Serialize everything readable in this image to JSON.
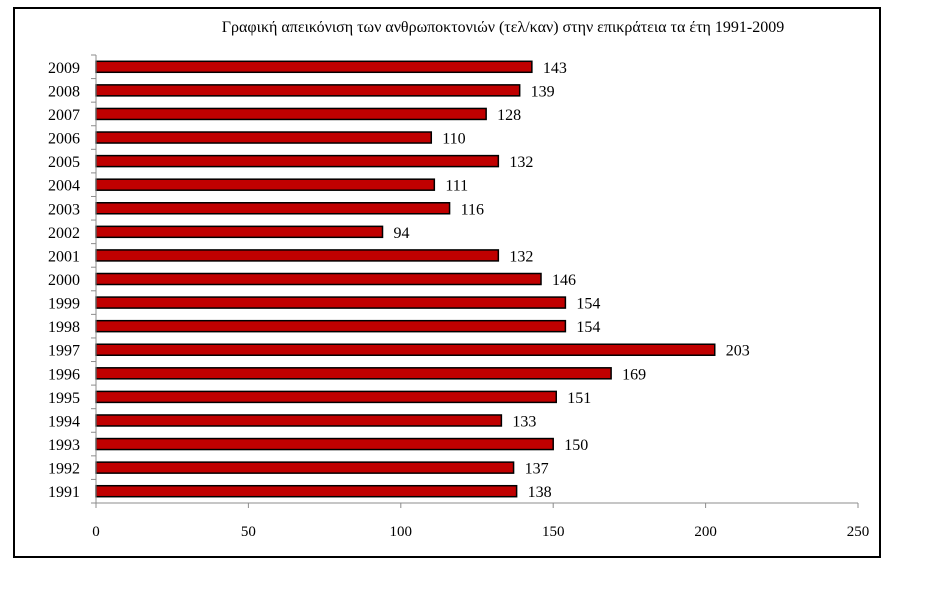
{
  "chart_data": {
    "type": "bar",
    "orientation": "horizontal",
    "title": "Γραφική απεικόνιση των ανθρωποκτονιών (τελ/καν) στην επικράτεια τα έτη 1991-2009",
    "categories": [
      "1991",
      "1992",
      "1993",
      "1994",
      "1995",
      "1996",
      "1997",
      "1998",
      "1999",
      "2000",
      "2001",
      "2002",
      "2003",
      "2004",
      "2005",
      "2006",
      "2007",
      "2008",
      "2009"
    ],
    "values": [
      138,
      137,
      150,
      133,
      151,
      169,
      203,
      154,
      154,
      146,
      132,
      94,
      116,
      111,
      132,
      110,
      128,
      139,
      143
    ],
    "xlim": [
      0,
      250
    ],
    "xticks": [
      "0",
      "50",
      "100",
      "150",
      "200",
      "250"
    ],
    "bar_color": "#C00000",
    "bar_border": "#000000",
    "grid": false,
    "legend": "none"
  }
}
